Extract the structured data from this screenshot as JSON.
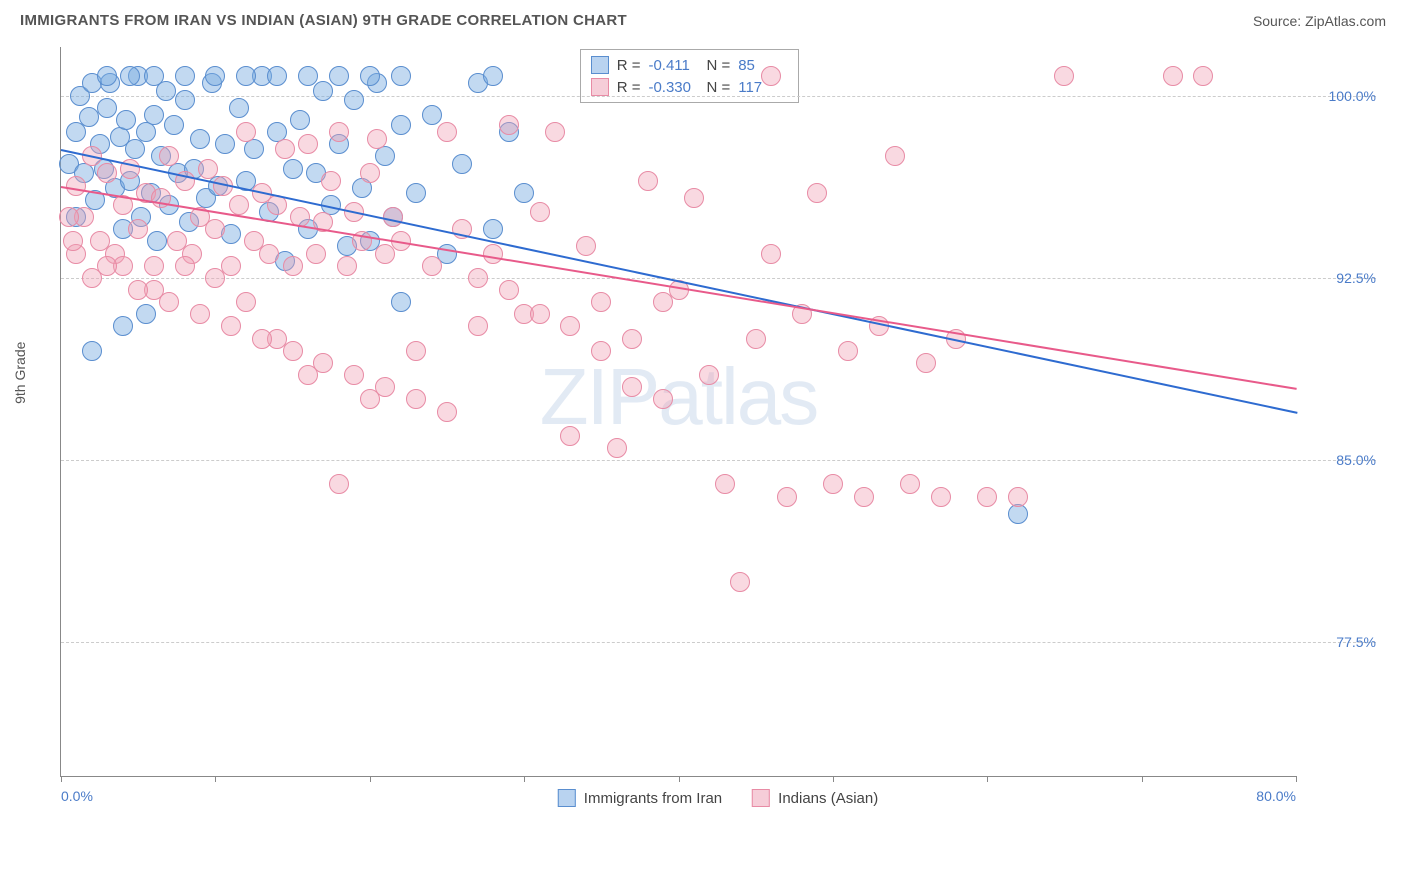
{
  "header": {
    "title": "IMMIGRANTS FROM IRAN VS INDIAN (ASIAN) 9TH GRADE CORRELATION CHART",
    "source": "Source: ZipAtlas.com"
  },
  "chart": {
    "type": "scatter",
    "y_axis_label": "9th Grade",
    "watermark": "ZIPatlas",
    "background_color": "#ffffff",
    "grid_color": "#cccccc",
    "axis_color": "#888888",
    "tick_label_color": "#4a7bc8",
    "title_fontsize": 15,
    "label_fontsize": 14,
    "xlim": [
      0,
      80
    ],
    "ylim": [
      72,
      102
    ],
    "x_ticks": [
      0,
      10,
      20,
      30,
      40,
      50,
      60,
      70,
      80
    ],
    "x_tick_labels": {
      "0": "0.0%",
      "80": "80.0%"
    },
    "y_ticks": [
      77.5,
      85.0,
      92.5,
      100.0
    ],
    "y_tick_labels": [
      "77.5%",
      "85.0%",
      "92.5%",
      "100.0%"
    ],
    "series": [
      {
        "name": "Immigrants from Iran",
        "color_fill": "rgba(120,170,225,0.45)",
        "color_stroke": "#5a8ecf",
        "line_color": "#2e6bd0",
        "swatch_fill": "#b9d3f0",
        "swatch_border": "#5a8ecf",
        "R": "-0.411",
        "N": "85",
        "marker_radius": 10,
        "trend": {
          "x1": 0,
          "y1": 97.8,
          "x2": 80,
          "y2": 87.0
        },
        "points": [
          [
            0.5,
            97.2
          ],
          [
            1.0,
            98.5
          ],
          [
            1.2,
            100.0
          ],
          [
            1.5,
            96.8
          ],
          [
            1.8,
            99.1
          ],
          [
            2.0,
            100.5
          ],
          [
            2.2,
            95.7
          ],
          [
            2.5,
            98.0
          ],
          [
            2.8,
            97.0
          ],
          [
            3.0,
            99.5
          ],
          [
            3.2,
            100.5
          ],
          [
            3.5,
            96.2
          ],
          [
            3.8,
            98.3
          ],
          [
            4.0,
            94.5
          ],
          [
            4.2,
            99.0
          ],
          [
            4.5,
            96.5
          ],
          [
            4.8,
            97.8
          ],
          [
            5.0,
            100.8
          ],
          [
            5.2,
            95.0
          ],
          [
            5.5,
            98.5
          ],
          [
            5.8,
            96.0
          ],
          [
            6.0,
            99.2
          ],
          [
            6.2,
            94.0
          ],
          [
            6.5,
            97.5
          ],
          [
            6.8,
            100.2
          ],
          [
            7.0,
            95.5
          ],
          [
            7.3,
            98.8
          ],
          [
            7.6,
            96.8
          ],
          [
            8.0,
            99.8
          ],
          [
            8.3,
            94.8
          ],
          [
            8.6,
            97.0
          ],
          [
            9.0,
            98.2
          ],
          [
            9.4,
            95.8
          ],
          [
            9.8,
            100.5
          ],
          [
            10.2,
            96.3
          ],
          [
            10.6,
            98.0
          ],
          [
            11.0,
            94.3
          ],
          [
            11.5,
            99.5
          ],
          [
            12.0,
            96.5
          ],
          [
            12.5,
            97.8
          ],
          [
            13.0,
            100.8
          ],
          [
            13.5,
            95.2
          ],
          [
            14.0,
            98.5
          ],
          [
            14.5,
            93.2
          ],
          [
            15.0,
            97.0
          ],
          [
            15.5,
            99.0
          ],
          [
            16.0,
            94.5
          ],
          [
            16.5,
            96.8
          ],
          [
            17.0,
            100.2
          ],
          [
            17.5,
            95.5
          ],
          [
            18.0,
            98.0
          ],
          [
            18.5,
            93.8
          ],
          [
            19.0,
            99.8
          ],
          [
            19.5,
            96.2
          ],
          [
            20.0,
            94.0
          ],
          [
            20.5,
            100.5
          ],
          [
            21.0,
            97.5
          ],
          [
            21.5,
            95.0
          ],
          [
            22.0,
            98.8
          ],
          [
            23.0,
            96.0
          ],
          [
            24.0,
            99.2
          ],
          [
            25.0,
            93.5
          ],
          [
            26.0,
            97.2
          ],
          [
            27.0,
            100.5
          ],
          [
            28.0,
            94.5
          ],
          [
            29.0,
            98.5
          ],
          [
            30.0,
            96.0
          ],
          [
            2.0,
            89.5
          ],
          [
            4.0,
            90.5
          ],
          [
            5.5,
            91.0
          ],
          [
            22.0,
            91.5
          ],
          [
            3.0,
            100.8
          ],
          [
            4.5,
            100.8
          ],
          [
            6.0,
            100.8
          ],
          [
            8.0,
            100.8
          ],
          [
            10.0,
            100.8
          ],
          [
            12.0,
            100.8
          ],
          [
            14.0,
            100.8
          ],
          [
            16.0,
            100.8
          ],
          [
            18.0,
            100.8
          ],
          [
            20.0,
            100.8
          ],
          [
            22.0,
            100.8
          ],
          [
            28.0,
            100.8
          ],
          [
            62.0,
            82.8
          ],
          [
            1.0,
            95.0
          ]
        ]
      },
      {
        "name": "Indians (Asian)",
        "color_fill": "rgba(240,160,180,0.40)",
        "color_stroke": "#e88ba5",
        "line_color": "#e85a8a",
        "swatch_fill": "#f6cdd8",
        "swatch_border": "#e88ba5",
        "R": "-0.330",
        "N": "117",
        "marker_radius": 10,
        "trend": {
          "x1": 0,
          "y1": 96.3,
          "x2": 80,
          "y2": 88.0
        },
        "points": [
          [
            1.0,
            96.3
          ],
          [
            1.5,
            95.0
          ],
          [
            2.0,
            97.5
          ],
          [
            2.5,
            94.0
          ],
          [
            3.0,
            96.8
          ],
          [
            3.5,
            93.5
          ],
          [
            4.0,
            95.5
          ],
          [
            4.5,
            97.0
          ],
          [
            5.0,
            94.5
          ],
          [
            5.5,
            96.0
          ],
          [
            6.0,
            93.0
          ],
          [
            6.5,
            95.8
          ],
          [
            7.0,
            97.5
          ],
          [
            7.5,
            94.0
          ],
          [
            8.0,
            96.5
          ],
          [
            8.5,
            93.5
          ],
          [
            9.0,
            95.0
          ],
          [
            9.5,
            97.0
          ],
          [
            10.0,
            94.5
          ],
          [
            10.5,
            96.3
          ],
          [
            11.0,
            93.0
          ],
          [
            11.5,
            95.5
          ],
          [
            12.0,
            98.5
          ],
          [
            12.5,
            94.0
          ],
          [
            13.0,
            96.0
          ],
          [
            13.5,
            93.5
          ],
          [
            14.0,
            95.5
          ],
          [
            14.5,
            97.8
          ],
          [
            15.0,
            93.0
          ],
          [
            15.5,
            95.0
          ],
          [
            16.0,
            98.0
          ],
          [
            16.5,
            93.5
          ],
          [
            17.0,
            94.8
          ],
          [
            17.5,
            96.5
          ],
          [
            18.0,
            98.5
          ],
          [
            18.5,
            93.0
          ],
          [
            19.0,
            95.2
          ],
          [
            19.5,
            94.0
          ],
          [
            20.0,
            96.8
          ],
          [
            20.5,
            98.2
          ],
          [
            21.0,
            93.5
          ],
          [
            21.5,
            95.0
          ],
          [
            22.0,
            94.0
          ],
          [
            23.0,
            89.5
          ],
          [
            24.0,
            93.0
          ],
          [
            25.0,
            98.5
          ],
          [
            26.0,
            94.5
          ],
          [
            27.0,
            90.5
          ],
          [
            28.0,
            93.5
          ],
          [
            29.0,
            98.8
          ],
          [
            30.0,
            91.0
          ],
          [
            31.0,
            95.2
          ],
          [
            32.0,
            98.5
          ],
          [
            33.0,
            86.0
          ],
          [
            34.0,
            93.8
          ],
          [
            35.0,
            91.5
          ],
          [
            36.0,
            85.5
          ],
          [
            37.0,
            88.0
          ],
          [
            38.0,
            96.5
          ],
          [
            39.0,
            87.5
          ],
          [
            40.0,
            92.0
          ],
          [
            41.0,
            95.8
          ],
          [
            42.0,
            88.5
          ],
          [
            43.0,
            84.0
          ],
          [
            44.0,
            80.0
          ],
          [
            45.0,
            90.0
          ],
          [
            46.0,
            93.5
          ],
          [
            47.0,
            83.5
          ],
          [
            48.0,
            91.0
          ],
          [
            49.0,
            96.0
          ],
          [
            50.0,
            84.0
          ],
          [
            51.0,
            89.5
          ],
          [
            52.0,
            83.5
          ],
          [
            53.0,
            90.5
          ],
          [
            54.0,
            97.5
          ],
          [
            55.0,
            84.0
          ],
          [
            56.0,
            89.0
          ],
          [
            57.0,
            83.5
          ],
          [
            58.0,
            90.0
          ],
          [
            60.0,
            83.5
          ],
          [
            62.0,
            83.5
          ],
          [
            65.0,
            100.8
          ],
          [
            72.0,
            100.8
          ],
          [
            74.0,
            100.8
          ],
          [
            46.0,
            100.8
          ],
          [
            18.0,
            84.0
          ],
          [
            20.0,
            87.5
          ],
          [
            16.0,
            88.5
          ],
          [
            14.0,
            90.0
          ],
          [
            12.0,
            91.5
          ],
          [
            10.0,
            92.5
          ],
          [
            8.0,
            93.0
          ],
          [
            6.0,
            92.0
          ],
          [
            4.0,
            93.0
          ],
          [
            2.0,
            92.5
          ],
          [
            1.0,
            93.5
          ],
          [
            0.8,
            94.0
          ],
          [
            0.5,
            95.0
          ],
          [
            3.0,
            93.0
          ],
          [
            5.0,
            92.0
          ],
          [
            7.0,
            91.5
          ],
          [
            9.0,
            91.0
          ],
          [
            11.0,
            90.5
          ],
          [
            13.0,
            90.0
          ],
          [
            15.0,
            89.5
          ],
          [
            17.0,
            89.0
          ],
          [
            19.0,
            88.5
          ],
          [
            21.0,
            88.0
          ],
          [
            23.0,
            87.5
          ],
          [
            25.0,
            87.0
          ],
          [
            27.0,
            92.5
          ],
          [
            29.0,
            92.0
          ],
          [
            31.0,
            91.0
          ],
          [
            33.0,
            90.5
          ],
          [
            35.0,
            89.5
          ],
          [
            37.0,
            90.0
          ],
          [
            39.0,
            91.5
          ]
        ]
      }
    ],
    "bottom_legend": [
      {
        "label": "Immigrants from Iran",
        "swatch_fill": "#b9d3f0",
        "swatch_border": "#5a8ecf"
      },
      {
        "label": "Indians (Asian)",
        "swatch_fill": "#f6cdd8",
        "swatch_border": "#e88ba5"
      }
    ]
  }
}
